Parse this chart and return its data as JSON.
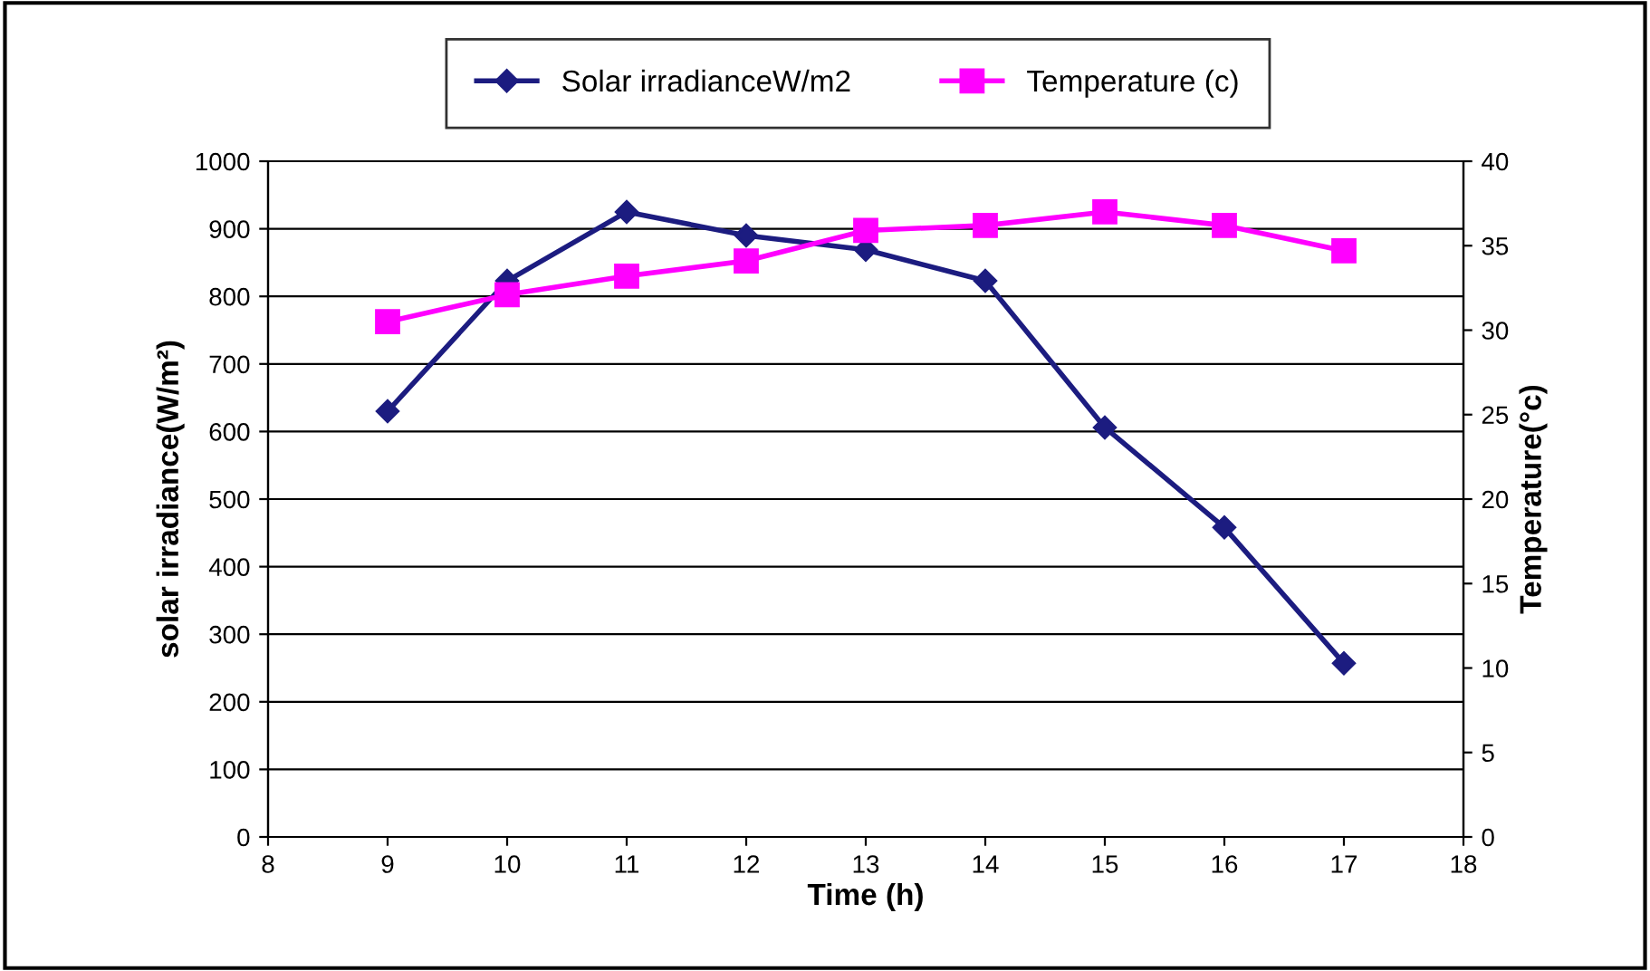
{
  "chart_data": {
    "type": "line",
    "xlabel": "Time (h)",
    "ylabel": "solar irradiance(W/m²)",
    "y2label": "Temperature(°c)",
    "x": [
      9,
      10,
      11,
      12,
      13,
      14,
      15,
      16,
      17
    ],
    "series": [
      {
        "name": "Solar irradianceW/m2",
        "color": "#1c1c80",
        "marker": "diamond",
        "values": [
          630,
          823,
          925,
          890,
          869,
          823,
          606,
          458,
          257
        ]
      },
      {
        "name": "Temperature (c)",
        "color": "#ff00ff",
        "marker": "square",
        "axis": "y2",
        "values": [
          30.5,
          32.1,
          33.2,
          34.1,
          35.9,
          36.2,
          37.0,
          36.2,
          34.7
        ]
      }
    ],
    "xlim": [
      8,
      18
    ],
    "xticks": [
      8,
      9,
      10,
      11,
      12,
      13,
      14,
      15,
      16,
      17,
      18
    ],
    "ylim": [
      0,
      1000
    ],
    "yticks": [
      0,
      100,
      200,
      300,
      400,
      500,
      600,
      700,
      800,
      900,
      1000
    ],
    "y2lim": [
      0,
      40
    ],
    "y2ticks": [
      0,
      5,
      10,
      15,
      20,
      25,
      30,
      35,
      40
    ],
    "grid": "y",
    "legend": "top",
    "line_style": "solid"
  }
}
